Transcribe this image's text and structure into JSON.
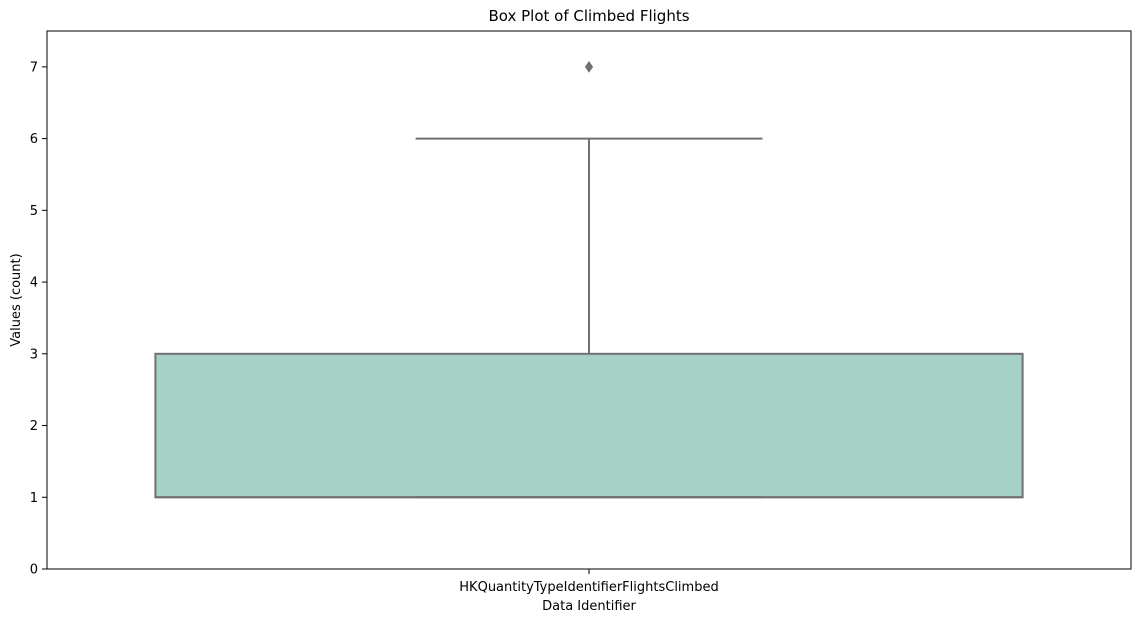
{
  "chart_data": {
    "type": "box",
    "title": "Box Plot of Climbed Flights",
    "xlabel": "Data Identifier",
    "ylabel": "Values (count)",
    "categories": [
      "HKQuantityTypeIdentifierFlightsClimbed"
    ],
    "boxes": [
      {
        "category": "HKQuantityTypeIdentifierFlightsClimbed",
        "whisker_low": 1,
        "q1": 1,
        "median": 1,
        "q3": 3,
        "whisker_high": 6,
        "outliers": [
          7
        ]
      }
    ],
    "ylim": [
      0,
      7.5
    ],
    "yticks": [
      0,
      1,
      2,
      3,
      4,
      5,
      6,
      7
    ],
    "grid": false,
    "legend": "none",
    "colors": {
      "box_fill": "#a5d1c7",
      "box_line": "#707070",
      "outlier": "#707070",
      "axis": "#000000"
    }
  }
}
